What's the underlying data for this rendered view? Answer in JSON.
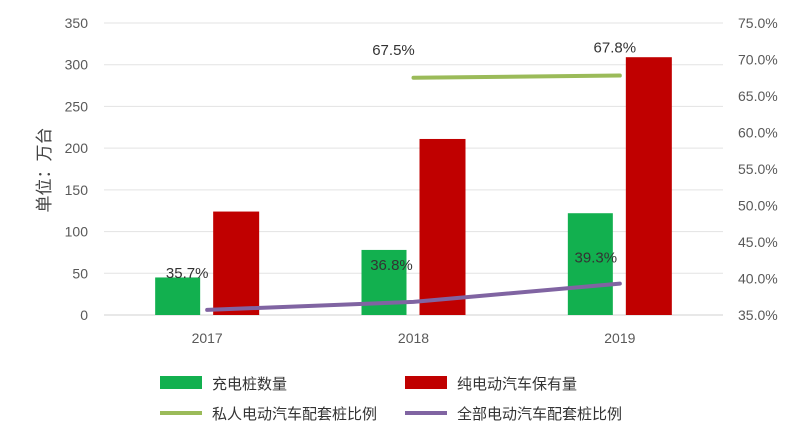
{
  "chart_data": {
    "type": "bar",
    "categories": [
      "2017",
      "2018",
      "2019"
    ],
    "ylabel": "单位：万台",
    "ylim": [
      0,
      350
    ],
    "yticks": [
      "0",
      "50",
      "100",
      "150",
      "200",
      "250",
      "300",
      "350"
    ],
    "y2lim": [
      35.0,
      75.0
    ],
    "y2ticks": [
      "35.0%",
      "40.0%",
      "45.0%",
      "50.0%",
      "55.0%",
      "60.0%",
      "65.0%",
      "70.0%",
      "75.0%"
    ],
    "grid": true,
    "legend_position": "bottom",
    "bar_series": [
      {
        "name": "充电桩数量",
        "values": [
          45,
          78,
          122
        ],
        "color": "#12b04f"
      },
      {
        "name": "纯电动汽车保有量",
        "values": [
          124,
          211,
          309
        ],
        "color": "#c00000"
      }
    ],
    "line_series": [
      {
        "name": "私人电动汽车配套桩比例",
        "axis": "right",
        "values": [
          null,
          67.5,
          67.8
        ],
        "labels": [
          "",
          "67.5%",
          "67.8%"
        ],
        "color": "#9bbb59"
      },
      {
        "name": "全部电动汽车配套桩比例",
        "axis": "right",
        "values": [
          35.7,
          36.8,
          39.3
        ],
        "labels": [
          "35.7%",
          "36.8%",
          "39.3%"
        ],
        "color": "#8064a2"
      }
    ]
  }
}
